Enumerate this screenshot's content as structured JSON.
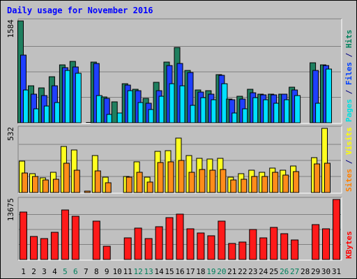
{
  "title": "Daily usage for November 2016",
  "chart_data": {
    "type": "bar",
    "categories": [
      "1",
      "2",
      "3",
      "4",
      "5",
      "6",
      "7",
      "8",
      "9",
      "10",
      "11",
      "12",
      "13",
      "14",
      "15",
      "16",
      "17",
      "18",
      "19",
      "20",
      "21",
      "22",
      "23",
      "24",
      "25",
      "26",
      "27",
      "28",
      "29",
      "30",
      "31"
    ],
    "weekend_days": [
      "5",
      "6",
      "12",
      "13",
      "19",
      "20",
      "26",
      "27"
    ],
    "panels": [
      {
        "id": "pages-files-hits",
        "max_label": "1584",
        "ymax": 1584,
        "ylabel_parts": [
          {
            "text": "Pages",
            "color": "#00e0e0"
          },
          {
            "text": " / ",
            "color": "#000080"
          },
          {
            "text": "Files",
            "color": "#0040ff"
          },
          {
            "text": " / ",
            "color": "#000080"
          },
          {
            "text": "Hits",
            "color": "#00805c"
          }
        ],
        "series": [
          {
            "name": "Hits",
            "color": "#1f7f5f",
            "values": [
              1584,
              570,
              545,
              720,
              900,
              955,
              0,
              945,
              405,
              325,
              610,
              525,
              385,
              625,
              940,
              1170,
              810,
              510,
              495,
              745,
              370,
              410,
              525,
              445,
              450,
              450,
              555,
              0,
              935,
              900,
              0
            ]
          },
          {
            "name": "Files",
            "color": "#1f3fff",
            "values": [
              1050,
              440,
              420,
              570,
              860,
              870,
              0,
              920,
              375,
              0,
              590,
              500,
              305,
              500,
              890,
              920,
              780,
              475,
              440,
              735,
              360,
              370,
              470,
              435,
              435,
              445,
              505,
              0,
              810,
              890,
              0
            ]
          },
          {
            "name": "Pages",
            "color": "#00e0ff",
            "values": [
              515,
              215,
              260,
              310,
              810,
              770,
              10,
              420,
              135,
              150,
              500,
              315,
              210,
              415,
              610,
              570,
              275,
              395,
              355,
              610,
              150,
              220,
              390,
              355,
              300,
              355,
              420,
              0,
              300,
              840,
              0
            ]
          }
        ]
      },
      {
        "id": "sites-visits",
        "max_label": "532",
        "ymax": 532,
        "ylabel_parts": [
          {
            "text": "Sites",
            "color": "#ff8000"
          },
          {
            "text": " / ",
            "color": "#000080"
          },
          {
            "text": "Visits",
            "color": "#ffff00"
          }
        ],
        "series": [
          {
            "name": "Visits",
            "color": "#ffff20",
            "values": [
              262,
              155,
              120,
              165,
              380,
              355,
              0,
              305,
              125,
              0,
              135,
              255,
              130,
              342,
              348,
              450,
              305,
              285,
              280,
              285,
              128,
              155,
              185,
              170,
              200,
              185,
              222,
              0,
              290,
              532,
              0
            ]
          },
          {
            "name": "Sites",
            "color": "#ff8c1a",
            "values": [
              162,
              135,
              105,
              112,
              245,
              185,
              10,
              177,
              80,
              0,
              130,
              165,
              88,
              248,
              252,
              265,
              165,
              190,
              185,
              188,
              105,
              112,
              135,
              135,
              165,
              145,
              175,
              0,
              235,
              240,
              0
            ]
          }
        ]
      },
      {
        "id": "kbytes",
        "max_label": "13675",
        "ymax": 13675,
        "ylabel_parts": [
          {
            "text": "KBytes",
            "color": "#ff0000"
          }
        ],
        "series": [
          {
            "name": "KBytes",
            "color": "#ff1a1a",
            "values": [
              10800,
              5200,
              4800,
              6200,
              11300,
              9900,
              0,
              8800,
              3000,
              0,
              4850,
              7200,
              4700,
              7400,
              9550,
              10300,
              7000,
              6100,
              5400,
              8800,
              3600,
              3900,
              6800,
              4950,
              7300,
              5950,
              4500,
              0,
              7950,
              7000,
              13675
            ]
          }
        ]
      }
    ]
  }
}
